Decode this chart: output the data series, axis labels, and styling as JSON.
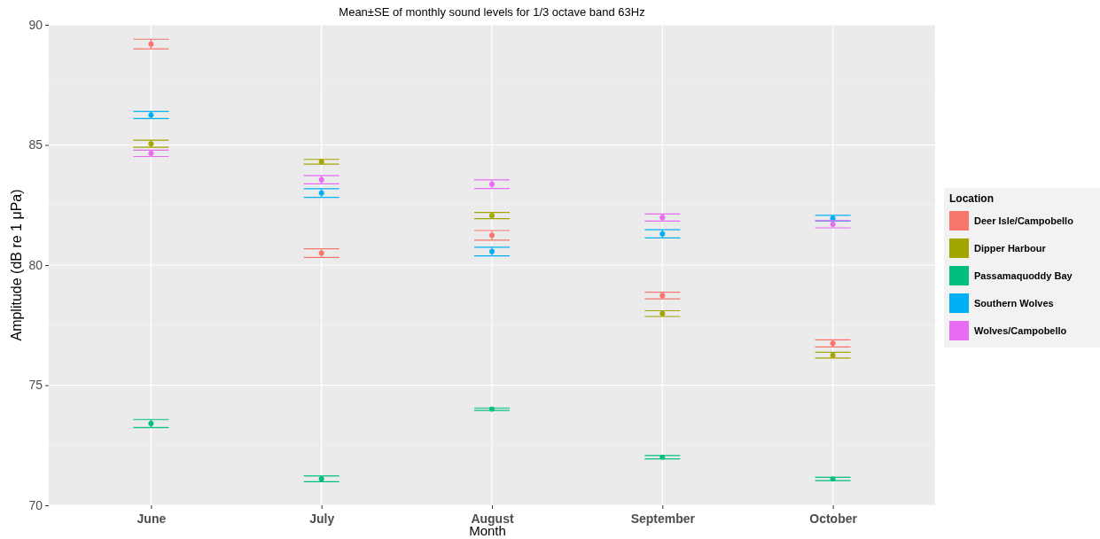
{
  "chart_data": {
    "type": "scatter",
    "title": "Mean±SE of monthly sound levels for 1/3 octave band 63Hz",
    "xlabel": "Month",
    "ylabel": "Amplitude (dB re 1 μPa)",
    "legend_title": "Location",
    "categories": [
      "June",
      "July",
      "August",
      "September",
      "October"
    ],
    "series": [
      {
        "name": "Deer Isle/Campobello",
        "color": "#f8766d",
        "values": [
          89.2,
          80.5,
          81.24,
          78.73,
          76.74
        ],
        "errors": [
          0.2,
          0.18,
          0.2,
          0.14,
          0.15
        ]
      },
      {
        "name": "Dipper Harbour",
        "color": "#a3a500",
        "values": [
          85.05,
          84.3,
          82.06,
          77.98,
          76.25
        ],
        "errors": [
          0.15,
          0.1,
          0.13,
          0.12,
          0.12
        ]
      },
      {
        "name": "Passamaquoddy Bay",
        "color": "#00bf7d",
        "values": [
          73.4,
          71.1,
          74.0,
          72.0,
          71.1
        ],
        "errors": [
          0.17,
          0.12,
          0.05,
          0.07,
          0.07
        ]
      },
      {
        "name": "Southern Wolves",
        "color": "#00b0f6",
        "values": [
          86.25,
          83.0,
          80.56,
          81.3,
          81.95
        ],
        "errors": [
          0.15,
          0.18,
          0.18,
          0.17,
          0.12
        ]
      },
      {
        "name": "Wolves/Campobello",
        "color": "#e76bf3",
        "values": [
          84.65,
          83.55,
          83.37,
          81.98,
          81.7
        ],
        "errors": [
          0.13,
          0.17,
          0.18,
          0.15,
          0.15
        ]
      }
    ],
    "ylim": [
      70,
      90
    ],
    "yticks": [
      70,
      75,
      80,
      85,
      90
    ],
    "grid": true,
    "legend": "right",
    "marker": "circle"
  }
}
